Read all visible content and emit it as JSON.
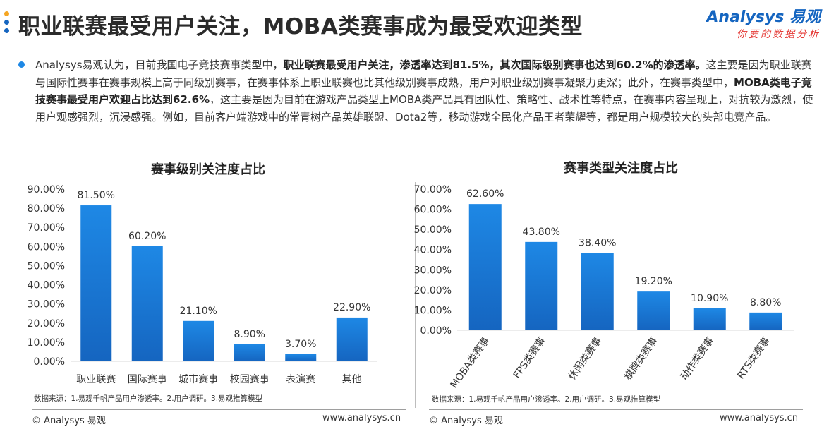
{
  "header": {
    "title": "职业联赛最受用户关注，MOBA类赛事成为最受欢迎类型",
    "logo_main": "Analysys 易观",
    "logo_sub": "你要的数据分析"
  },
  "paragraph": {
    "p1": "Analysys易观认为，目前我国电子竞技赛事类型中，",
    "b1": "职业联赛最受用户关注，渗透率达到81.5%，其次国际级别赛事也达到60.2%的渗透率。",
    "p2": "这主要是因为职业联赛与国际性赛事在赛事规模上高于同级别赛事，在赛事体系上职业联赛也比其他级别赛事成熟，用户对职业级别赛事凝聚力更深；此外，在赛事类型中，",
    "b2": "MOBA类电子竞技赛事最受用户欢迎占比达到62.6%",
    "p3": "，这主要是因为目前在游戏产品类型上MOBA类产品具有团队性、策略性、战术性等特点，在赛事内容呈现上，对抗较为激烈，使用户观感强烈，沉浸感强。例如，目前客户端游戏中的常青树产品英雄联盟、Dota2等，移动游戏全民化产品王者荣耀等，都是用户规模较大的头部电竞产品。"
  },
  "chart_data": [
    {
      "type": "bar",
      "title": "赛事级别关注度占比",
      "categories": [
        "职业联赛",
        "国际赛事",
        "城市赛事",
        "校园赛事",
        "表演赛",
        "其他"
      ],
      "values": [
        81.5,
        60.2,
        21.1,
        8.9,
        3.7,
        22.9
      ],
      "value_labels": [
        "81.50%",
        "60.20%",
        "21.10%",
        "8.90%",
        "3.70%",
        "22.90%"
      ],
      "ylim": [
        0,
        90
      ],
      "yticks": [
        "0.00%",
        "10.00%",
        "20.00%",
        "30.00%",
        "40.00%",
        "50.00%",
        "60.00%",
        "70.00%",
        "80.00%",
        "90.00%"
      ],
      "xlabel": "",
      "ylabel": "",
      "source": "数据来源：1.易观千帆产品用户渗透率。2.用户调研。3.易观推算模型"
    },
    {
      "type": "bar",
      "title": "赛事类型关注度占比",
      "categories": [
        "MOBA类赛事",
        "FPS类赛事",
        "休闲类赛事",
        "棋牌类赛事",
        "动作类赛事",
        "RTS类赛事"
      ],
      "values": [
        62.6,
        43.8,
        38.4,
        19.2,
        10.9,
        8.8
      ],
      "value_labels": [
        "62.60%",
        "43.80%",
        "38.40%",
        "19.20%",
        "10.90%",
        "8.80%"
      ],
      "ylim": [
        0,
        70
      ],
      "yticks": [
        "0.00%",
        "10.00%",
        "20.00%",
        "30.00%",
        "40.00%",
        "50.00%",
        "60.00%",
        "70.00%"
      ],
      "xlabel": "",
      "ylabel": "",
      "source": "数据来源：1.易观千帆产品用户渗透率。2.用户调研。3.易观推算模型"
    }
  ],
  "footer": {
    "left_copyright": "© Analysys 易观",
    "left_url": "www.analysys.cn",
    "right_copyright": "© Analysys 易观",
    "right_url": "www.analysys.cn"
  },
  "colors": {
    "bar_top": "#1e88e5",
    "bar_bottom": "#1565c0",
    "accent": "#1565c0",
    "dot_orange": "#f5a623"
  }
}
